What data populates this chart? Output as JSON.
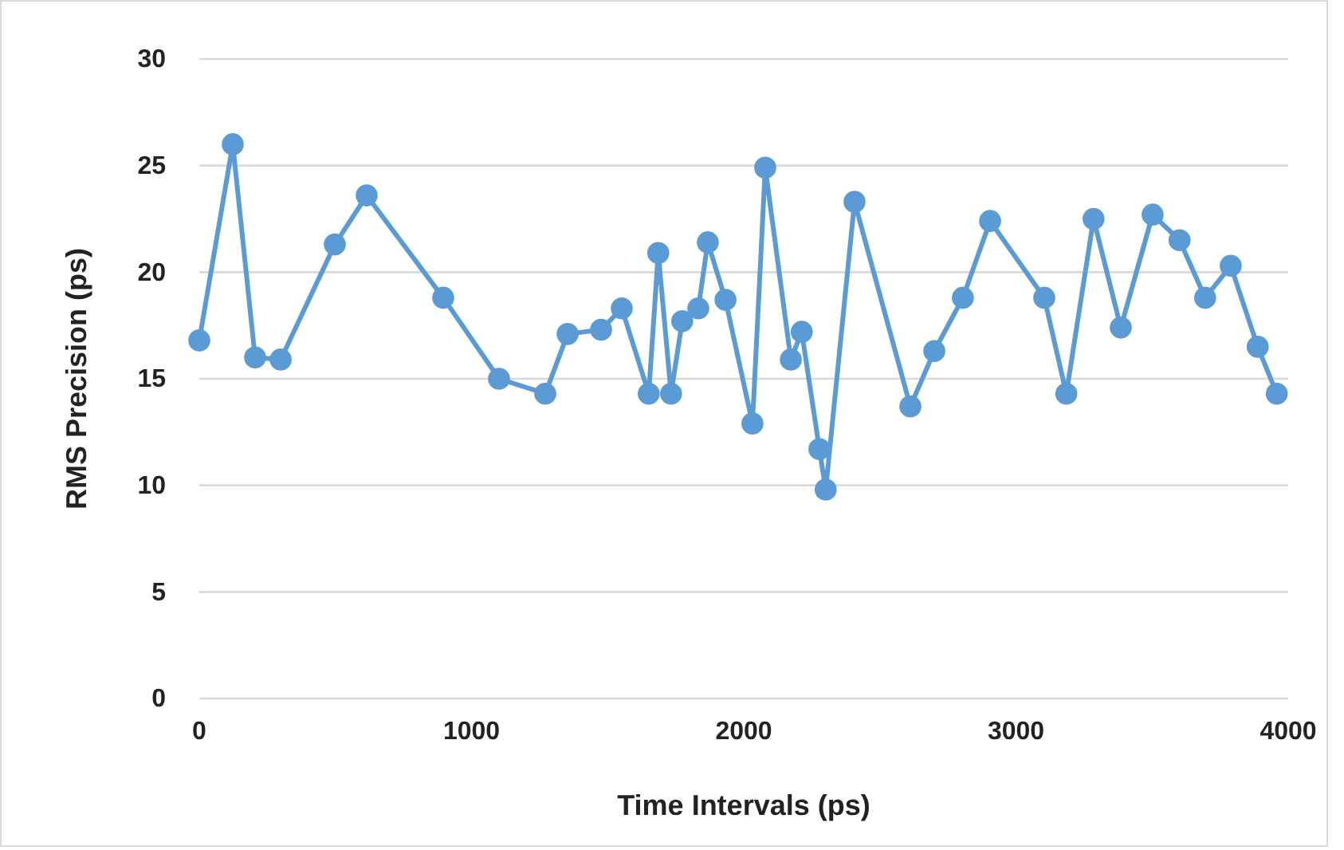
{
  "chart_data": {
    "type": "line",
    "xlabel": "Time Intervals (ps)",
    "ylabel": "RMS Precision (ps)",
    "xlim": [
      0,
      4000
    ],
    "xticks": [
      0,
      1000,
      2000,
      3000,
      4000
    ],
    "ylim": [
      0,
      30
    ],
    "yticks": [
      0,
      5,
      10,
      15,
      20,
      25,
      30
    ],
    "grid": "y",
    "marker": "circle",
    "line_style": "solid",
    "series": [
      {
        "color": "#5b9bd5",
        "x": [
          0,
          123,
          205,
          299,
          498,
          615,
          896,
          1101,
          1271,
          1353,
          1476,
          1552,
          1651,
          1686,
          1733,
          1774,
          1833,
          1868,
          1933,
          2032,
          2079,
          2173,
          2213,
          2278,
          2301,
          2407,
          2612,
          2700,
          2805,
          2905,
          3104,
          3185,
          3285,
          3385,
          3502,
          3601,
          3695,
          3789,
          3888,
          3958
        ],
        "values": [
          16.8,
          26.0,
          16.0,
          15.9,
          21.3,
          23.6,
          18.8,
          15.0,
          14.3,
          17.1,
          17.3,
          18.3,
          14.3,
          20.9,
          14.3,
          17.7,
          18.3,
          21.4,
          18.7,
          12.9,
          24.9,
          15.9,
          17.2,
          11.7,
          9.8,
          23.3,
          13.7,
          16.3,
          18.8,
          22.4,
          18.8,
          14.3,
          22.5,
          17.4,
          22.7,
          21.5,
          18.8,
          20.3,
          16.5,
          14.3
        ]
      }
    ]
  }
}
